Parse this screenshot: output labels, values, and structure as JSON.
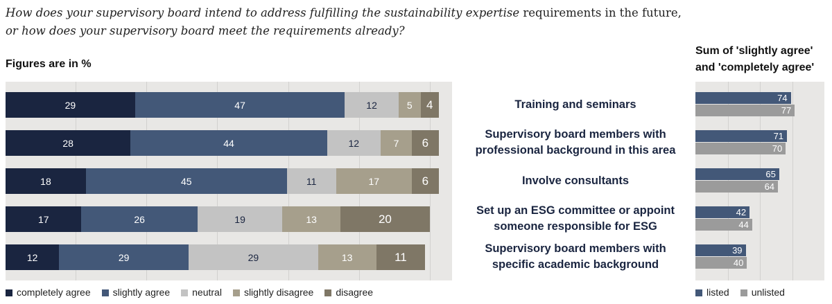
{
  "question": {
    "italic": "How does your supervisory board intend to address fulfilling the sustainability expertise",
    "rest": " requirements in the future,",
    "line2": "or how does your supervisory board meet the requirements already?"
  },
  "subtitle": "Figures are in %",
  "sum_title": [
    "Sum of 'slightly agree'",
    "and 'completely agree'"
  ],
  "chart_data": [
    {
      "type": "bar",
      "stacked": true,
      "orientation": "horizontal",
      "categories": [
        "Training and seminars",
        "Supervisory board members with professional background in this area",
        "Involve consultants",
        "Set up an ESG committee or appoint someone responsible for ESG",
        "Supervisory board members with specific academic background"
      ],
      "category_lines": [
        [
          "Training and seminars"
        ],
        [
          "Supervisory board members with",
          "professional background in this area"
        ],
        [
          "Involve consultants"
        ],
        [
          "Set up an ESG committee or appoint",
          "someone responsible for ESG"
        ],
        [
          "Supervisory board members with",
          "specific academic background"
        ]
      ],
      "series": [
        {
          "name": "completely agree",
          "color": "#1a2540",
          "values": [
            29,
            28,
            18,
            17,
            12
          ]
        },
        {
          "name": "slightly agree",
          "color": "#435878",
          "values": [
            47,
            44,
            45,
            26,
            29
          ]
        },
        {
          "name": "neutral",
          "color": "#c3c3c3",
          "values": [
            12,
            12,
            11,
            19,
            29
          ]
        },
        {
          "name": "slightly disagree",
          "color": "#a69f8c",
          "values": [
            5,
            7,
            17,
            13,
            13
          ]
        },
        {
          "name": "disagree",
          "color": "#7f7766",
          "values": [
            4,
            6,
            6,
            20,
            11
          ]
        }
      ],
      "xlim": [
        0,
        100
      ],
      "legend": "bottom"
    },
    {
      "type": "bar",
      "orientation": "horizontal",
      "title": "Sum of 'slightly agree' and 'completely agree'",
      "series": [
        {
          "name": "listed",
          "color": "#435878",
          "values": [
            74,
            71,
            65,
            42,
            39
          ]
        },
        {
          "name": "unlisted",
          "color": "#9b9b9b",
          "values": [
            77,
            70,
            64,
            44,
            40
          ]
        }
      ],
      "xlim": [
        0,
        100
      ],
      "legend": "bottom"
    }
  ]
}
